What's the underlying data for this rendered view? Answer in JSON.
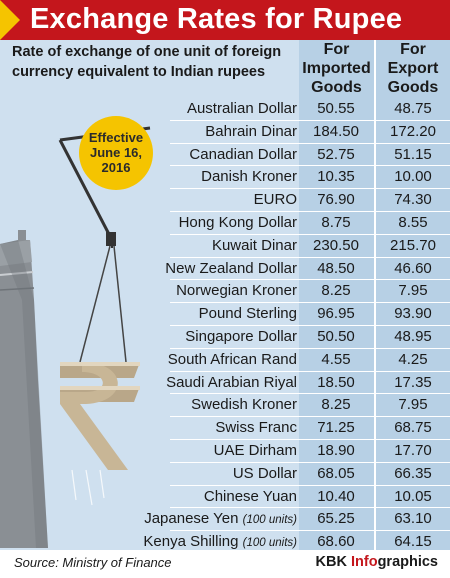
{
  "title": "Exchange Rates for Rupee",
  "subtitle": "Rate of exchange of one unit of foreign currency equivalent to Indian rupees",
  "badge": {
    "line1": "Effective",
    "line2": "June 16,",
    "line3": "2016"
  },
  "columns": {
    "imported": {
      "line1": "For",
      "line2": "Imported",
      "line3": "Goods"
    },
    "export": {
      "line1": "For",
      "line2": "Export",
      "line3": "Goods"
    }
  },
  "footer": {
    "source": "Source: Ministry of Finance",
    "credit_prefix": "KBK ",
    "credit_accent": "Info",
    "credit_suffix": "graphics"
  },
  "colors": {
    "title_bar": "#c4161c",
    "accent_yellow": "#f5c400",
    "panel": "#cfe0ef",
    "column": "#b7d0e5"
  },
  "icons": [
    "rupee-sign-icon",
    "crane-hook-icon",
    "ship-icon"
  ],
  "chart_data": {
    "type": "table",
    "columns": [
      "For Imported Goods",
      "For Export Goods"
    ],
    "rows": [
      {
        "currency": "Australian Dollar",
        "unit": "",
        "imported": "50.55",
        "export": "48.75"
      },
      {
        "currency": "Bahrain Dinar",
        "unit": "",
        "imported": "184.50",
        "export": "172.20"
      },
      {
        "currency": "Canadian Dollar",
        "unit": "",
        "imported": "52.75",
        "export": "51.15"
      },
      {
        "currency": "Danish Kroner",
        "unit": "",
        "imported": "10.35",
        "export": "10.00"
      },
      {
        "currency": "EURO",
        "unit": "",
        "imported": "76.90",
        "export": "74.30"
      },
      {
        "currency": "Hong Kong Dollar",
        "unit": "",
        "imported": "8.75",
        "export": "8.55"
      },
      {
        "currency": "Kuwait Dinar",
        "unit": "",
        "imported": "230.50",
        "export": "215.70"
      },
      {
        "currency": "New Zealand Dollar",
        "unit": "",
        "imported": "48.50",
        "export": "46.60"
      },
      {
        "currency": "Norwegian Kroner",
        "unit": "",
        "imported": "8.25",
        "export": "7.95"
      },
      {
        "currency": "Pound Sterling",
        "unit": "",
        "imported": "96.95",
        "export": "93.90"
      },
      {
        "currency": "Singapore Dollar",
        "unit": "",
        "imported": "50.50",
        "export": "48.95"
      },
      {
        "currency": "South African Rand",
        "unit": "",
        "imported": "4.55",
        "export": "4.25"
      },
      {
        "currency": "Saudi Arabian Riyal",
        "unit": "",
        "imported": "18.50",
        "export": "17.35"
      },
      {
        "currency": "Swedish Kroner",
        "unit": "",
        "imported": "8.25",
        "export": "7.95"
      },
      {
        "currency": "Swiss Franc",
        "unit": "",
        "imported": "71.25",
        "export": "68.75"
      },
      {
        "currency": "UAE Dirham",
        "unit": "",
        "imported": "18.90",
        "export": "17.70"
      },
      {
        "currency": "US Dollar",
        "unit": "",
        "imported": "68.05",
        "export": "66.35"
      },
      {
        "currency": "Chinese Yuan",
        "unit": "",
        "imported": "10.40",
        "export": "10.05"
      },
      {
        "currency": "Japanese Yen",
        "unit": "(100 units)",
        "imported": "65.25",
        "export": "63.10"
      },
      {
        "currency": "Kenya Shilling",
        "unit": "(100 units)",
        "imported": "68.60",
        "export": "64.15"
      }
    ]
  }
}
